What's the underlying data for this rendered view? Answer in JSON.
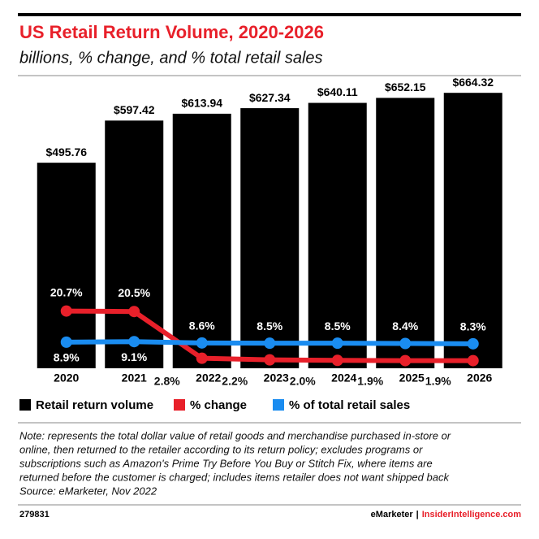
{
  "chart_data": {
    "type": "bar",
    "title": "US Retail Return Volume, 2020-2026",
    "subtitle": "billions, % change, and % total retail sales",
    "categories": [
      "2020",
      "2021",
      "2022",
      "2023",
      "2024",
      "2025",
      "2026"
    ],
    "series": [
      {
        "name": "Retail return volume",
        "color": "#000000",
        "values": [
          495.76,
          597.42,
          613.94,
          627.34,
          640.11,
          652.15,
          664.32
        ],
        "value_labels": [
          "$495.76",
          "$597.42",
          "$613.94",
          "$627.34",
          "$640.11",
          "$652.15",
          "$664.32"
        ]
      },
      {
        "name": "% change",
        "type": "line",
        "axis": "y2",
        "color": "#e8202a",
        "values": [
          20.7,
          20.5,
          2.8,
          2.2,
          2.0,
          1.9,
          1.9
        ],
        "value_labels": [
          "20.7%",
          "20.5%",
          "2.8%",
          "2.2%",
          "2.0%",
          "1.9%",
          "1.9%"
        ]
      },
      {
        "name": "% of total retail sales",
        "type": "line",
        "axis": "y2",
        "color": "#1a8cf0",
        "values": [
          8.9,
          9.1,
          8.6,
          8.5,
          8.5,
          8.4,
          8.3
        ],
        "value_labels": [
          "8.9%",
          "9.1%",
          "8.6%",
          "8.5%",
          "8.5%",
          "8.4%",
          "8.3%"
        ]
      }
    ],
    "ylim": [
      0,
      700
    ],
    "y2lim": [
      -1,
      109
    ],
    "note": [
      "Note: represents the total dollar value of retail goods and merchandise purchased in-store or",
      "online, then returned to the retailer according to its return policy; excludes programs or",
      "subscriptions such as Amazon's Prime Try Before You Buy or Stitch Fix, where items are",
      "returned before the customer is charged; includes items retailer does not want shipped back",
      "Source: eMarketer, Nov 2022"
    ],
    "chart_id": "279831",
    "footer_brand": "eMarketer",
    "footer_separator": "|",
    "footer_site": "InsiderIntelligence.com"
  }
}
